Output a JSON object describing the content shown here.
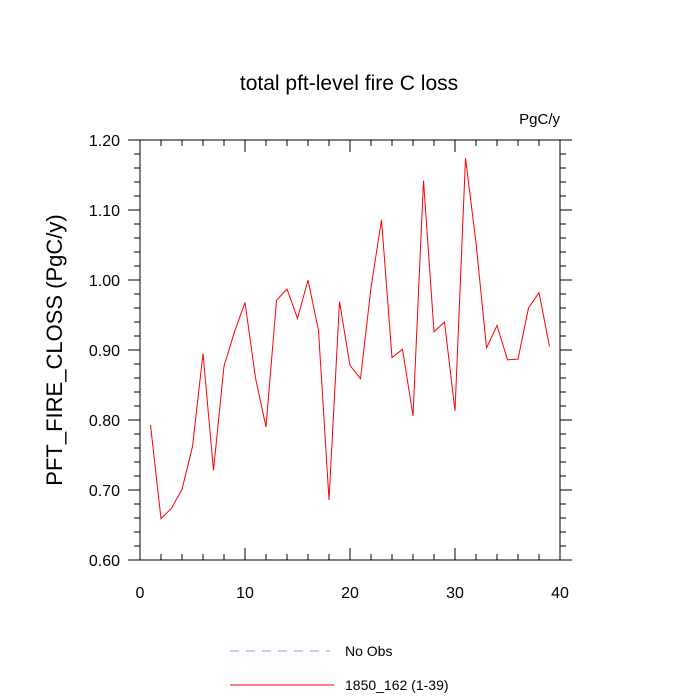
{
  "chart_data": {
    "type": "line",
    "title": "total pft-level fire C loss",
    "units_label": "PgC/y",
    "ylabel": "PFT_FIRE_CLOSS  (PgC/y)",
    "xlabel": "",
    "xlim": [
      0,
      40
    ],
    "ylim": [
      0.6,
      1.2
    ],
    "x_ticks": [
      0,
      10,
      20,
      30,
      40
    ],
    "x_tick_labels": [
      "0",
      "10",
      "20",
      "30",
      "40"
    ],
    "y_ticks": [
      0.6,
      0.7,
      0.8,
      0.9,
      1.0,
      1.1,
      1.2
    ],
    "y_tick_labels": [
      "0.60",
      "0.70",
      "0.80",
      "0.90",
      "1.00",
      "1.10",
      "1.20"
    ],
    "grid": false,
    "series": [
      {
        "name": "1850_162 (1-39)",
        "color": "#ff0000",
        "style": "solid",
        "x": [
          1,
          2,
          3,
          4,
          5,
          6,
          7,
          8,
          9,
          10,
          11,
          12,
          13,
          14,
          15,
          16,
          17,
          18,
          19,
          20,
          21,
          22,
          23,
          24,
          25,
          26,
          27,
          28,
          29,
          30,
          31,
          32,
          33,
          34,
          35,
          36,
          37,
          38,
          39
        ],
        "values": [
          0.793,
          0.659,
          0.674,
          0.701,
          0.762,
          0.895,
          0.728,
          0.877,
          0.926,
          0.968,
          0.86,
          0.79,
          0.971,
          0.987,
          0.945,
          1.0,
          0.928,
          0.686,
          0.969,
          0.878,
          0.859,
          0.989,
          1.086,
          0.889,
          0.901,
          0.806,
          1.142,
          0.926,
          0.94,
          0.813,
          1.174,
          1.053,
          0.903,
          0.935,
          0.886,
          0.887,
          0.96,
          0.982,
          0.905
        ]
      }
    ],
    "legend": {
      "placement": "bottom-center",
      "entries": [
        {
          "label": "No Obs",
          "color": "#9a9aff",
          "style": "dashed"
        },
        {
          "label": "1850_162 (1-39)",
          "color": "#ff0000",
          "style": "solid"
        }
      ]
    }
  }
}
